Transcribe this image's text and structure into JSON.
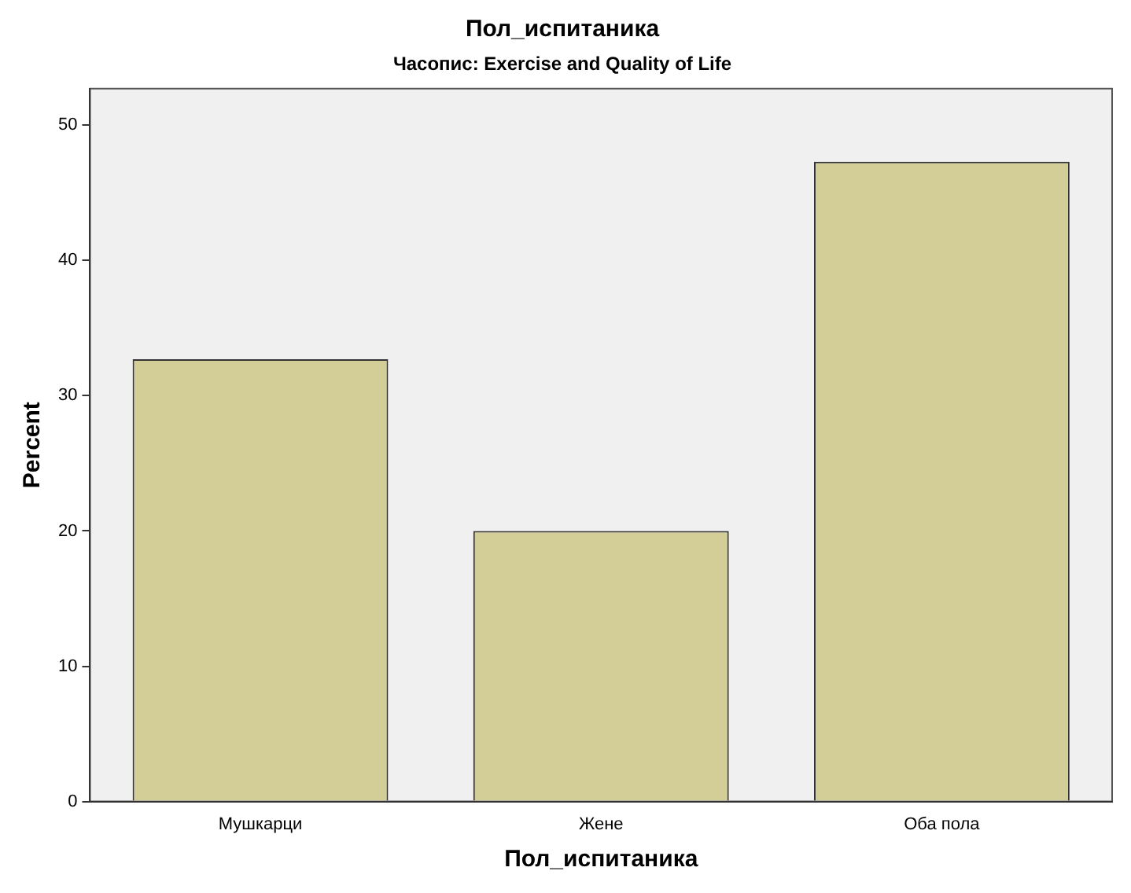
{
  "chart_data": {
    "type": "bar",
    "title": "Пол_испитаника",
    "subtitle": "Часопис: Exercise and Quality of Life",
    "xlabel": "Пол_испитаника",
    "ylabel": "Percent",
    "categories": [
      "Мушкарци",
      "Жене",
      "Оба пола"
    ],
    "values": [
      32.7,
      20.0,
      47.3
    ],
    "color": "#d3ce97",
    "ylim": [
      0,
      52.7
    ],
    "yticks": [
      0,
      10,
      20,
      30,
      40,
      50
    ],
    "grid": false,
    "legend": false
  }
}
